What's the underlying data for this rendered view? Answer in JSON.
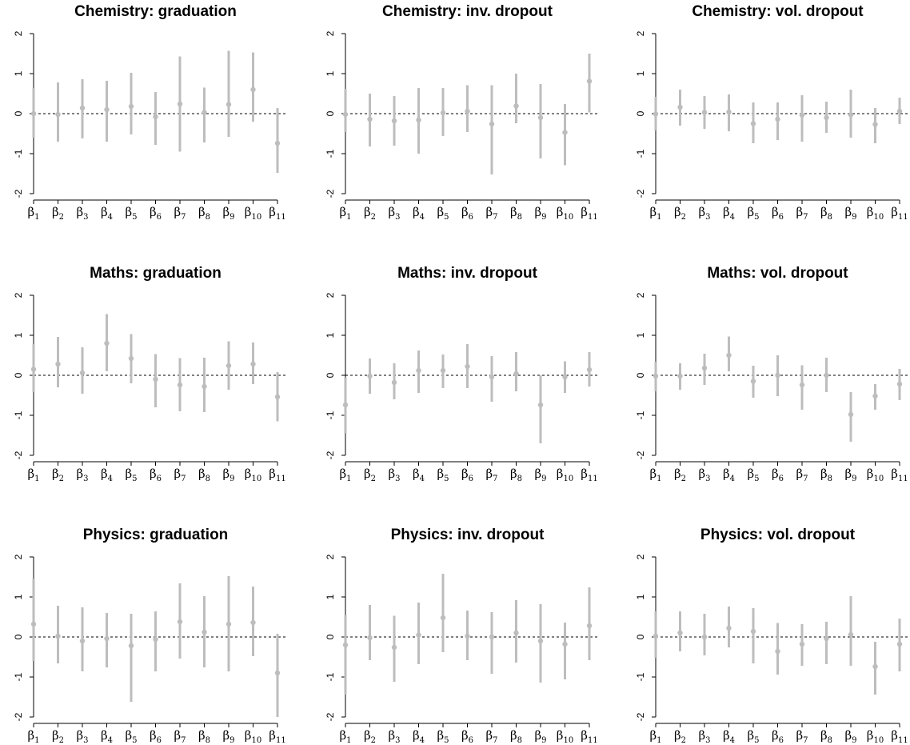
{
  "chart_data": [
    {
      "type": "scatter",
      "title": "Chemistry: graduation",
      "categories": [
        "β1",
        "β2",
        "β3",
        "β4",
        "β5",
        "β6",
        "β7",
        "β8",
        "β9",
        "β10",
        "β11"
      ],
      "yticks": [
        2,
        1,
        0,
        -1,
        -2
      ],
      "ylim": [
        -2,
        2
      ],
      "reference_line": 0,
      "estimate": [
        0.0,
        -0.02,
        0.14,
        0.1,
        0.18,
        -0.08,
        0.24,
        0.03,
        0.23,
        0.6,
        -0.74
      ],
      "lower": [
        -0.6,
        -0.7,
        -0.62,
        -0.7,
        -0.52,
        -0.78,
        -0.95,
        -0.72,
        -0.58,
        -0.2,
        -1.48
      ],
      "upper": [
        0.64,
        0.78,
        0.86,
        0.82,
        1.02,
        0.54,
        1.43,
        0.65,
        1.57,
        1.53,
        0.14
      ]
    },
    {
      "type": "scatter",
      "title": "Chemistry: inv. dropout",
      "categories": [
        "β1",
        "β2",
        "β3",
        "β4",
        "β5",
        "β6",
        "β7",
        "β8",
        "β9",
        "β10",
        "β11"
      ],
      "yticks": [
        2,
        1,
        0,
        -1,
        -2
      ],
      "ylim": [
        -2,
        2
      ],
      "reference_line": 0,
      "estimate": [
        -0.02,
        -0.14,
        -0.18,
        -0.16,
        0.02,
        0.06,
        -0.26,
        0.19,
        -0.1,
        -0.47,
        0.81
      ],
      "lower": [
        -0.46,
        -0.82,
        -0.8,
        -1.0,
        -0.56,
        -0.46,
        -1.52,
        -0.24,
        -1.12,
        -1.29,
        0.03
      ],
      "upper": [
        0.62,
        0.5,
        0.44,
        0.64,
        0.64,
        0.71,
        0.71,
        1.0,
        0.74,
        0.24,
        1.5
      ]
    },
    {
      "type": "scatter",
      "title": "Chemistry: vol. dropout",
      "categories": [
        "β1",
        "β2",
        "β3",
        "β4",
        "β5",
        "β6",
        "β7",
        "β8",
        "β9",
        "β10",
        "β11"
      ],
      "yticks": [
        2,
        1,
        0,
        -1,
        -2
      ],
      "ylim": [
        -2,
        2
      ],
      "reference_line": 0,
      "estimate": [
        -0.01,
        0.16,
        0.03,
        0.04,
        -0.25,
        -0.14,
        -0.04,
        -0.1,
        -0.03,
        -0.27,
        0.06
      ],
      "lower": [
        -0.42,
        -0.3,
        -0.38,
        -0.44,
        -0.74,
        -0.66,
        -0.7,
        -0.48,
        -0.6,
        -0.74,
        -0.26
      ],
      "upper": [
        0.42,
        0.6,
        0.44,
        0.48,
        0.28,
        0.28,
        0.46,
        0.3,
        0.6,
        0.14,
        0.4
      ]
    },
    {
      "type": "scatter",
      "title": "Maths: graduation",
      "categories": [
        "β1",
        "β2",
        "β3",
        "β4",
        "β5",
        "β6",
        "β7",
        "β8",
        "β9",
        "β10",
        "β11"
      ],
      "yticks": [
        2,
        1,
        0,
        -1,
        -2
      ],
      "ylim": [
        -2,
        2
      ],
      "reference_line": 0,
      "estimate": [
        0.15,
        0.28,
        0.06,
        0.8,
        0.42,
        -0.1,
        -0.24,
        -0.28,
        0.24,
        0.28,
        -0.54
      ],
      "lower": [
        -0.42,
        -0.3,
        -0.46,
        0.1,
        -0.2,
        -0.8,
        -0.9,
        -0.92,
        -0.36,
        -0.22,
        -1.15
      ],
      "upper": [
        0.78,
        0.96,
        0.7,
        1.53,
        1.03,
        0.53,
        0.43,
        0.44,
        0.85,
        0.82,
        0.08
      ]
    },
    {
      "type": "scatter",
      "title": "Maths: inv. dropout",
      "categories": [
        "β1",
        "β2",
        "β3",
        "β4",
        "β5",
        "β6",
        "β7",
        "β8",
        "β9",
        "β10",
        "β11"
      ],
      "yticks": [
        2,
        1,
        0,
        -1,
        -2
      ],
      "ylim": [
        -2,
        2
      ],
      "reference_line": 0,
      "estimate": [
        -0.74,
        -0.02,
        -0.18,
        0.12,
        0.12,
        0.22,
        -0.04,
        0.04,
        -0.74,
        -0.04,
        0.14
      ],
      "lower": [
        -1.45,
        -0.46,
        -0.6,
        -0.44,
        -0.32,
        -0.32,
        -0.66,
        -0.4,
        -1.7,
        -0.44,
        -0.28
      ],
      "upper": [
        -0.06,
        0.42,
        0.3,
        0.62,
        0.52,
        0.78,
        0.48,
        0.58,
        0.0,
        0.35,
        0.58
      ]
    },
    {
      "type": "scatter",
      "title": "Maths: vol. dropout",
      "categories": [
        "β1",
        "β2",
        "β3",
        "β4",
        "β5",
        "β6",
        "β7",
        "β8",
        "β9",
        "β10",
        "β11"
      ],
      "yticks": [
        2,
        1,
        0,
        -1,
        -2
      ],
      "ylim": [
        -2,
        2
      ],
      "reference_line": 0,
      "estimate": [
        -0.02,
        -0.02,
        0.18,
        0.5,
        -0.15,
        0.0,
        -0.24,
        0.0,
        -0.98,
        -0.52,
        -0.22
      ],
      "lower": [
        -0.4,
        -0.36,
        -0.24,
        0.1,
        -0.56,
        -0.52,
        -0.86,
        -0.42,
        -1.66,
        -0.86,
        -0.62
      ],
      "upper": [
        0.34,
        0.3,
        0.54,
        0.97,
        0.24,
        0.5,
        0.25,
        0.44,
        -0.42,
        -0.22,
        0.16
      ]
    },
    {
      "type": "scatter",
      "title": "Physics: graduation",
      "categories": [
        "β1",
        "β2",
        "β3",
        "β4",
        "β5",
        "β6",
        "β7",
        "β8",
        "β9",
        "β10",
        "β11"
      ],
      "yticks": [
        2,
        1,
        0,
        -1,
        -2
      ],
      "ylim": [
        -2,
        2
      ],
      "reference_line": 0,
      "estimate": [
        0.32,
        0.02,
        -0.1,
        -0.04,
        -0.22,
        -0.06,
        0.38,
        0.12,
        0.32,
        0.36,
        -0.9
      ],
      "lower": [
        -0.6,
        -0.66,
        -0.86,
        -0.76,
        -1.62,
        -0.86,
        -0.54,
        -0.76,
        -0.86,
        -0.48,
        -2.0
      ],
      "upper": [
        1.46,
        0.78,
        0.74,
        0.6,
        0.58,
        0.64,
        1.34,
        1.02,
        1.52,
        1.26,
        0.08
      ]
    },
    {
      "type": "scatter",
      "title": "Physics: inv. dropout",
      "categories": [
        "β1",
        "β2",
        "β3",
        "β4",
        "β5",
        "β6",
        "β7",
        "β8",
        "β9",
        "β10",
        "β11"
      ],
      "yticks": [
        2,
        1,
        0,
        -1,
        -2
      ],
      "ylim": [
        -2,
        2
      ],
      "reference_line": 0,
      "estimate": [
        -0.2,
        -0.02,
        -0.26,
        0.05,
        0.48,
        0.02,
        0.0,
        0.1,
        -0.1,
        -0.18,
        0.28
      ],
      "lower": [
        -1.44,
        -0.58,
        -1.12,
        -0.68,
        -0.38,
        -0.58,
        -0.92,
        -0.64,
        -1.14,
        -1.06,
        -0.58
      ],
      "upper": [
        0.55,
        0.8,
        0.53,
        0.86,
        1.58,
        0.66,
        0.62,
        0.92,
        0.82,
        0.36,
        1.24
      ]
    },
    {
      "type": "scatter",
      "title": "Physics: vol. dropout",
      "categories": [
        "β1",
        "β2",
        "β3",
        "β4",
        "β5",
        "β6",
        "β7",
        "β8",
        "β9",
        "β10",
        "β11"
      ],
      "yticks": [
        2,
        1,
        0,
        -1,
        -2
      ],
      "ylim": [
        -2,
        2
      ],
      "reference_line": 0,
      "estimate": [
        0.02,
        0.1,
        0.0,
        0.22,
        0.14,
        -0.36,
        -0.18,
        -0.04,
        0.06,
        -0.74,
        -0.18
      ],
      "lower": [
        -0.52,
        -0.36,
        -0.46,
        -0.26,
        -0.66,
        -0.94,
        -0.72,
        -0.68,
        -0.72,
        -1.44,
        -0.86
      ],
      "upper": [
        0.64,
        0.64,
        0.58,
        0.76,
        0.72,
        0.35,
        0.32,
        0.38,
        1.02,
        -0.12,
        0.46
      ]
    }
  ]
}
